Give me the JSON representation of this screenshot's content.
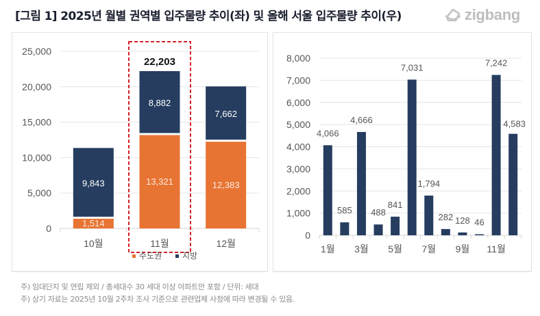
{
  "header": {
    "title": "[그림 1] 2025년 월별 권역별 입주물량 추이(좌) 및 올해 서울 입주물량 추이(우)",
    "logo_text": "zigbang",
    "logo_icon": "zigbang-logo-icon"
  },
  "colors": {
    "navy": "#263d60",
    "orange": "#e87433",
    "highlight": "#d42026",
    "grid": "#e4e4e4",
    "axis_text": "#555555"
  },
  "chart_data": [
    {
      "type": "bar",
      "stacked": true,
      "title": "",
      "categories": [
        "10월",
        "11월",
        "12월"
      ],
      "series": [
        {
          "name": "수도권",
          "values": [
            1514,
            13321,
            12383
          ],
          "labels": [
            "1,514",
            "13,321",
            "12,383"
          ],
          "color": "#e87433"
        },
        {
          "name": "지방",
          "values": [
            9843,
            8882,
            7662
          ],
          "labels": [
            "9,843",
            "8,882",
            "7,662"
          ],
          "color": "#263d60"
        }
      ],
      "highlight": {
        "category": "11월",
        "total_label": "22,203"
      },
      "ylim": [
        0,
        25000
      ],
      "yticks": [
        0,
        5000,
        10000,
        15000,
        20000,
        25000
      ],
      "ytick_labels": [
        "0",
        "5,000",
        "10,000",
        "15,000",
        "20,000",
        "25,000"
      ],
      "grid": true,
      "legend": {
        "position": "bottom",
        "entries": [
          "수도권",
          "지방"
        ]
      },
      "xlabel": "",
      "ylabel": ""
    },
    {
      "type": "bar",
      "title": "",
      "categories": [
        "1월",
        "2월",
        "3월",
        "4월",
        "5월",
        "6월",
        "7월",
        "8월",
        "9월",
        "10월",
        "11월",
        "12월"
      ],
      "xtick_labels": [
        "1월",
        "",
        "3월",
        "",
        "5월",
        "",
        "7월",
        "",
        "9월",
        "",
        "11월",
        ""
      ],
      "values": [
        4066,
        585,
        4666,
        488,
        841,
        7031,
        1794,
        282,
        128,
        46,
        7242,
        4583
      ],
      "labels": [
        "4,066",
        "585",
        "4,666",
        "488",
        "841",
        "7,031",
        "1,794",
        "282",
        "128",
        "46",
        "7,242",
        "4,583"
      ],
      "ylim": [
        0,
        8000
      ],
      "yticks": [
        0,
        1000,
        2000,
        3000,
        4000,
        5000,
        6000,
        7000,
        8000
      ],
      "ytick_labels": [
        "0",
        "1,000",
        "2,000",
        "3,000",
        "4,000",
        "5,000",
        "6,000",
        "7,000",
        "8,000"
      ],
      "grid": true,
      "color": "#263d60",
      "xlabel": "",
      "ylabel": ""
    }
  ],
  "notes": [
    "주) 임대단지 및 연립 제외 / 총세대수 30 세대 이상 아파트만 포함 / 단위: 세대",
    "주) 상기 자료는 2025년 10월 2주차 조사 기준으로 관련업체 사정에 따라 변경될 수 있음."
  ]
}
